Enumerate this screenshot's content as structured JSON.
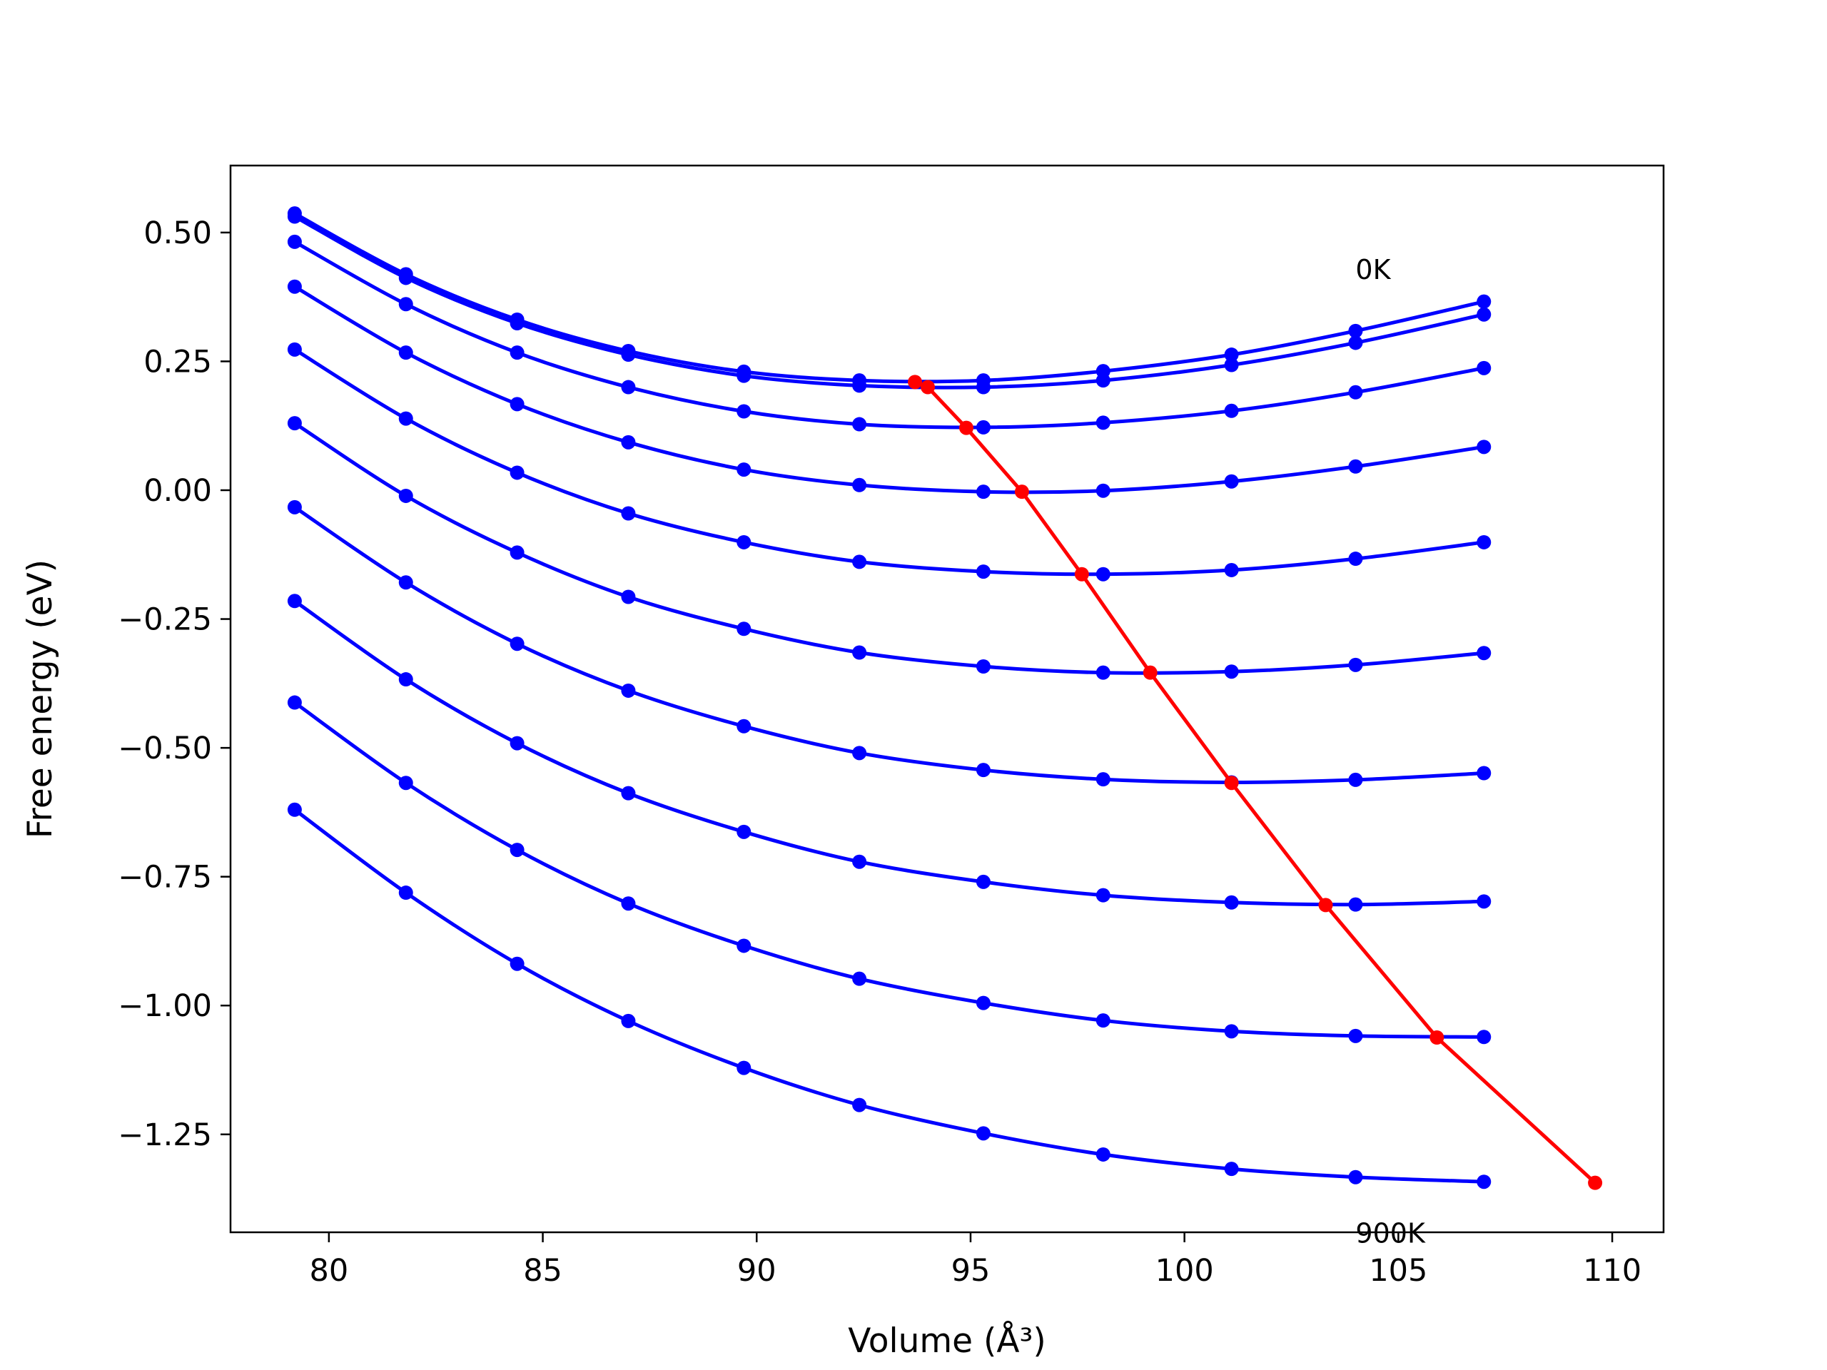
{
  "chart_data": {
    "type": "line",
    "title": "",
    "xlabel": "Volume",
    "xlabel_unit": "(Å³)",
    "ylabel": "Free energy (eV)",
    "xlim": [
      77.7,
      111.2
    ],
    "ylim": [
      -1.44,
      0.63
    ],
    "xticks": [
      80,
      85,
      90,
      95,
      100,
      105,
      110
    ],
    "xtick_labels": [
      "80",
      "85",
      "90",
      "95",
      "100",
      "105",
      "110"
    ],
    "yticks": [
      0.5,
      0.25,
      0.0,
      -0.25,
      -0.5,
      -0.75,
      -1.0,
      -1.25
    ],
    "ytick_labels": [
      "0.50",
      "0.25",
      "0.00",
      "−0.25",
      "−0.50",
      "−0.75",
      "−1.00",
      "−1.25"
    ],
    "grid": false,
    "legend": "none",
    "colors": {
      "isotherm": "#0000ff",
      "minimum_curve": "#ff0000",
      "axes": "#000000"
    },
    "annotations": [
      {
        "text": "0K",
        "x": 104.0,
        "y": 0.41
      },
      {
        "text": "900K",
        "x": 104.0,
        "y": -1.46
      }
    ],
    "x": [
      79.2,
      81.8,
      84.4,
      87.0,
      89.7,
      92.4,
      95.3,
      98.1,
      101.1,
      104.0,
      107.0
    ],
    "series": [
      {
        "color": "#0000ff",
        "values": [
          0.537,
          0.419,
          0.331,
          0.27,
          0.23,
          0.213,
          0.213,
          0.231,
          0.263,
          0.309,
          0.366
        ]
      },
      {
        "color": "#0000ff",
        "values": [
          0.531,
          0.412,
          0.324,
          0.263,
          0.222,
          0.203,
          0.2,
          0.213,
          0.243,
          0.286,
          0.341
        ]
      },
      {
        "color": "#0000ff",
        "values": [
          0.482,
          0.361,
          0.267,
          0.2,
          0.153,
          0.128,
          0.122,
          0.131,
          0.154,
          0.19,
          0.237
        ]
      },
      {
        "color": "#0000ff",
        "values": [
          0.395,
          0.267,
          0.167,
          0.093,
          0.04,
          0.01,
          -0.003,
          -0.001,
          0.017,
          0.046,
          0.084
        ]
      },
      {
        "color": "#0000ff",
        "values": [
          0.273,
          0.139,
          0.034,
          -0.045,
          -0.101,
          -0.139,
          -0.158,
          -0.163,
          -0.155,
          -0.133,
          -0.101
        ]
      },
      {
        "color": "#0000ff",
        "values": [
          0.13,
          -0.011,
          -0.121,
          -0.207,
          -0.269,
          -0.315,
          -0.342,
          -0.354,
          -0.352,
          -0.339,
          -0.316
        ]
      },
      {
        "color": "#0000ff",
        "values": [
          -0.033,
          -0.179,
          -0.298,
          -0.389,
          -0.458,
          -0.51,
          -0.543,
          -0.561,
          -0.567,
          -0.562,
          -0.549
        ]
      },
      {
        "color": "#0000ff",
        "values": [
          -0.215,
          -0.367,
          -0.491,
          -0.588,
          -0.663,
          -0.721,
          -0.76,
          -0.786,
          -0.8,
          -0.804,
          -0.798
        ]
      },
      {
        "color": "#0000ff",
        "values": [
          -0.412,
          -0.568,
          -0.698,
          -0.802,
          -0.884,
          -0.948,
          -0.995,
          -1.029,
          -1.05,
          -1.059,
          -1.061
        ]
      },
      {
        "color": "#0000ff",
        "values": [
          -0.62,
          -0.781,
          -0.919,
          -1.03,
          -1.121,
          -1.193,
          -1.248,
          -1.289,
          -1.317,
          -1.333,
          -1.342
        ]
      }
    ],
    "minimum_curve": {
      "color": "#ff0000",
      "x": [
        93.7,
        94.0,
        94.9,
        96.2,
        97.6,
        99.2,
        101.1,
        103.3,
        105.9,
        109.6
      ],
      "y": [
        0.21,
        0.2,
        0.121,
        -0.003,
        -0.163,
        -0.354,
        -0.568,
        -0.805,
        -1.062,
        -1.344
      ]
    }
  }
}
